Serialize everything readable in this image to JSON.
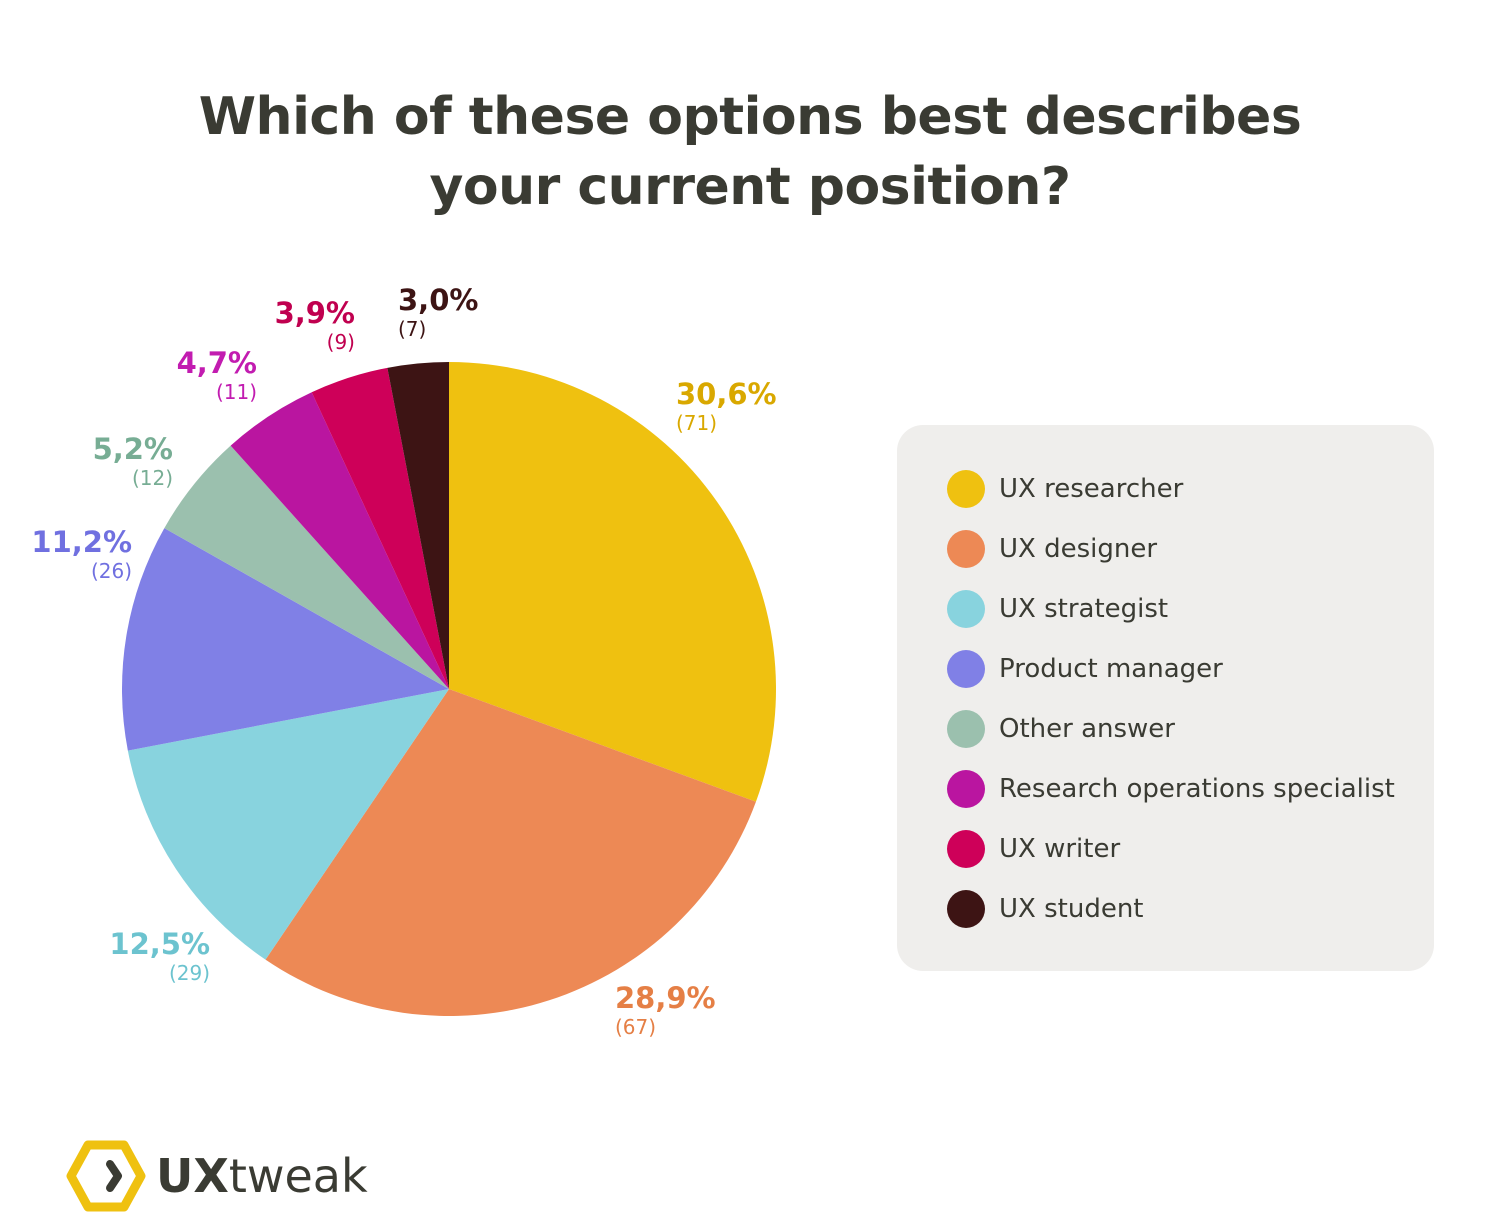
{
  "chart_data": {
    "type": "pie",
    "title": "Which of these options best describes your current position?",
    "start": "top",
    "direction": "clockwise",
    "legend_placement": "right",
    "slices": [
      {
        "label": "UX researcher",
        "value": 71,
        "percent": "30,6%",
        "count": "(71)",
        "color": "#EFC110",
        "text_color": "#D9A800"
      },
      {
        "label": "UX designer",
        "value": 67,
        "percent": "28,9%",
        "count": "(67)",
        "color": "#ED8955",
        "text_color": "#E57F45"
      },
      {
        "label": "UX strategist",
        "value": 29,
        "percent": "12,5%",
        "count": "(29)",
        "color": "#88D3DE",
        "text_color": "#6CC3CF"
      },
      {
        "label": "Product manager",
        "value": 26,
        "percent": "11,2%",
        "count": "(26)",
        "color": "#8080E6",
        "text_color": "#7070E0"
      },
      {
        "label": "Other answer",
        "value": 12,
        "percent": "5,2%",
        "count": "(12)",
        "color": "#9BC0AE",
        "text_color": "#77AD94"
      },
      {
        "label": "Research operations specialist",
        "value": 11,
        "percent": "4,7%",
        "count": "(11)",
        "color": "#BA15A0",
        "text_color": "#C21CB0"
      },
      {
        "label": "UX writer",
        "value": 9,
        "percent": "3,9%",
        "count": "(9)",
        "color": "#CE0059",
        "text_color": "#C0004F"
      },
      {
        "label": "UX student",
        "value": 7,
        "percent": "3,0%",
        "count": "(7)",
        "color": "#3D1414",
        "text_color": "#3D1414"
      }
    ]
  },
  "title_line1": "Which of these options best describes",
  "title_line2": "your current position?",
  "logo": {
    "text_bold": "UX",
    "text_light": "tweak",
    "color": "#EFC110"
  }
}
